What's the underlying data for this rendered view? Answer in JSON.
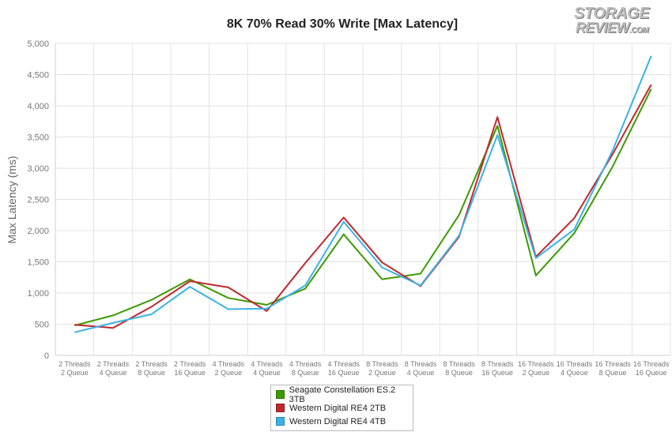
{
  "logo": {
    "line1": "STORAGE",
    "line2": "REVIEW",
    "suffix": ".COM"
  },
  "chart_data": {
    "type": "line",
    "title": "8K 70% Read 30% Write [Max Latency]",
    "xlabel": "",
    "ylabel": "Max Latency (ms)",
    "ylim": [
      0,
      5000
    ],
    "yticks": [
      "0",
      "500",
      "1,000",
      "1,500",
      "2,000",
      "2,500",
      "3,000",
      "3,500",
      "4,000",
      "4,500",
      "5,000"
    ],
    "ytick_values": [
      0,
      500,
      1000,
      1500,
      2000,
      2500,
      3000,
      3500,
      4000,
      4500,
      5000
    ],
    "grid": true,
    "legend_position": "bottom",
    "categories": [
      [
        "2 Threads",
        "2 Queue"
      ],
      [
        "2 Threads",
        "4 Queue"
      ],
      [
        "2 Threads",
        "8 Queue"
      ],
      [
        "2 Threads",
        "16 Queue"
      ],
      [
        "4 Threads",
        "2 Queue"
      ],
      [
        "4 Threads",
        "4 Queue"
      ],
      [
        "4 Threads",
        "8 Queue"
      ],
      [
        "4 Threads",
        "16 Queue"
      ],
      [
        "8 Threads",
        "2 Queue"
      ],
      [
        "8 Threads",
        "4 Queue"
      ],
      [
        "8 Threads",
        "8 Queue"
      ],
      [
        "8 Threads",
        "16 Queue"
      ],
      [
        "16 Threads",
        "2 Queue"
      ],
      [
        "16 Threads",
        "4 Queue"
      ],
      [
        "16 Threads",
        "8 Queue"
      ],
      [
        "16 Threads",
        "16 Queue"
      ]
    ],
    "series": [
      {
        "name": "Seagate Constellation ES.2 3TB",
        "color": "#3d9a00",
        "values": [
          480,
          640,
          890,
          1220,
          920,
          810,
          1070,
          1940,
          1220,
          1310,
          2250,
          3680,
          1280,
          1960,
          3030,
          4270
        ]
      },
      {
        "name": "Western Digital RE4 2TB",
        "color": "#c0272d",
        "values": [
          490,
          440,
          780,
          1190,
          1090,
          710,
          1480,
          2210,
          1490,
          1110,
          1900,
          3820,
          1580,
          2200,
          3230,
          4340
        ]
      },
      {
        "name": "Western Digital RE4 4TB",
        "color": "#39b3e6",
        "values": [
          370,
          520,
          660,
          1100,
          740,
          750,
          1120,
          2140,
          1410,
          1120,
          1920,
          3530,
          1560,
          2020,
          3290,
          4800
        ]
      }
    ]
  }
}
